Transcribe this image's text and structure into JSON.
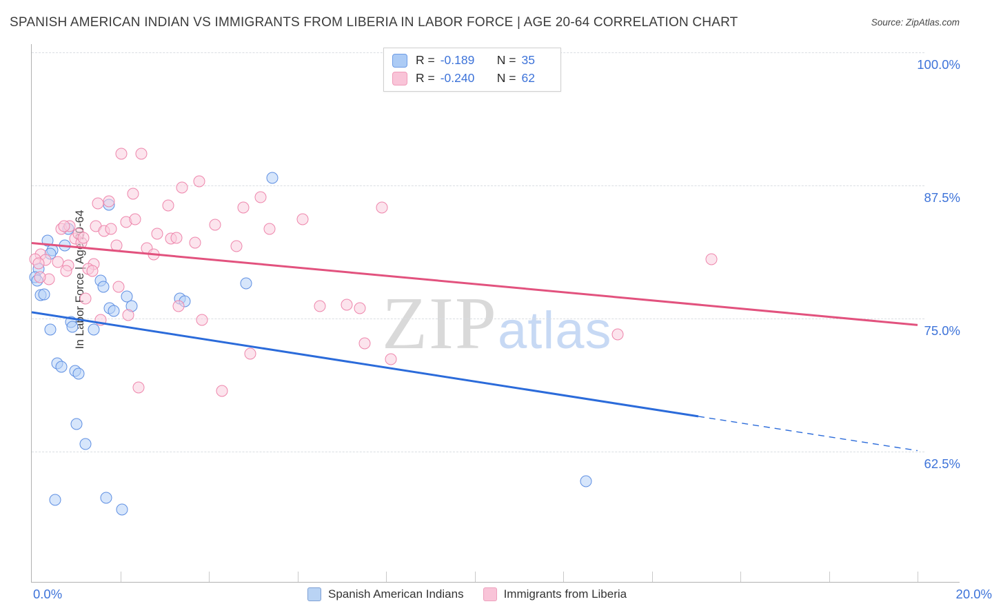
{
  "header": {
    "title": "SPANISH AMERICAN INDIAN VS IMMIGRANTS FROM LIBERIA IN LABOR FORCE | AGE 20-64 CORRELATION CHART",
    "source": "Source: ZipAtlas.com"
  },
  "stats_legend": [
    {
      "series": "blue",
      "r_label": "R =",
      "r_value": "-0.189",
      "n_label": "N =",
      "n_value": "35"
    },
    {
      "series": "pink",
      "r_label": "R =",
      "r_value": "-0.240",
      "n_label": "N =",
      "n_value": "62"
    }
  ],
  "axes": {
    "y_title": "In Labor Force | Age 20-64",
    "x_min_label": "0.0%",
    "x_max_label": "20.0%"
  },
  "watermark": {
    "zip": "ZIP",
    "atlas": "atlas"
  },
  "bottom_legend": [
    {
      "label": "Spanish American Indians",
      "series": "blue"
    },
    {
      "label": "Immigrants from Liberia",
      "series": "pink"
    }
  ],
  "colors": {
    "blue_point_stroke": "#5d8ee2",
    "blue_point_fill": "#b6d2f7",
    "pink_point_stroke": "#ee85ab",
    "pink_point_fill": "#f9cdde",
    "blue_trend": "#2b6bda",
    "pink_trend": "#e2527e",
    "axis_label_blue": "#3d73d9"
  },
  "chart_data": {
    "type": "scatter",
    "x_range": [
      0,
      20
    ],
    "y_gridlines": [
      {
        "value": 100.0,
        "label": "100.0%"
      },
      {
        "value": 87.5,
        "label": "87.5%"
      },
      {
        "value": 75.0,
        "label": "75.0%"
      },
      {
        "value": 62.5,
        "label": "62.5%"
      }
    ],
    "x_tick_step_pct": 2,
    "series": [
      {
        "name": "Spanish American Indians",
        "class": "blue",
        "points": [
          [
            1.74,
            85.7
          ],
          [
            0.83,
            83.4
          ],
          [
            0.36,
            82.3
          ],
          [
            0.75,
            81.9
          ],
          [
            0.47,
            81.4
          ],
          [
            0.42,
            81.1
          ],
          [
            0.16,
            79.7
          ],
          [
            0.08,
            78.9
          ],
          [
            1.56,
            78.6
          ],
          [
            1.62,
            78.0
          ],
          [
            0.2,
            77.2
          ],
          [
            0.28,
            77.3
          ],
          [
            2.15,
            77.1
          ],
          [
            2.26,
            76.2
          ],
          [
            1.76,
            76.0
          ],
          [
            1.85,
            75.7
          ],
          [
            0.89,
            74.7
          ],
          [
            0.92,
            74.2
          ],
          [
            0.42,
            74.0
          ],
          [
            1.4,
            74.0
          ],
          [
            3.35,
            76.9
          ],
          [
            3.46,
            76.6
          ],
          [
            0.58,
            70.8
          ],
          [
            0.67,
            70.5
          ],
          [
            0.98,
            70.1
          ],
          [
            1.06,
            69.8
          ],
          [
            1.01,
            65.1
          ],
          [
            1.21,
            63.2
          ],
          [
            4.84,
            78.3
          ],
          [
            5.43,
            88.2
          ],
          [
            0.53,
            58.0
          ],
          [
            1.68,
            58.2
          ],
          [
            2.04,
            57.1
          ],
          [
            12.51,
            59.7
          ],
          [
            0.12,
            78.6
          ]
        ],
        "trend": {
          "x1": 0,
          "y1": 75.6,
          "x2": 20,
          "y2": 62.6,
          "solid_until_x": 15.05
        }
      },
      {
        "name": "Immigrants from Liberia",
        "class": "pink",
        "points": [
          [
            2.02,
            90.5
          ],
          [
            2.47,
            90.5
          ],
          [
            2.29,
            86.7
          ],
          [
            3.39,
            87.3
          ],
          [
            3.78,
            87.9
          ],
          [
            1.49,
            85.8
          ],
          [
            1.74,
            86.0
          ],
          [
            3.08,
            85.6
          ],
          [
            2.13,
            84.1
          ],
          [
            2.33,
            84.3
          ],
          [
            4.14,
            83.8
          ],
          [
            1.45,
            83.7
          ],
          [
            1.63,
            83.2
          ],
          [
            1.79,
            83.4
          ],
          [
            0.67,
            83.4
          ],
          [
            0.86,
            83.7
          ],
          [
            2.83,
            83.0
          ],
          [
            3.14,
            82.5
          ],
          [
            0.98,
            82.5
          ],
          [
            1.12,
            82.1
          ],
          [
            1.91,
            81.9
          ],
          [
            3.27,
            82.6
          ],
          [
            3.69,
            82.1
          ],
          [
            2.6,
            81.6
          ],
          [
            2.75,
            81.0
          ],
          [
            0.2,
            81.0
          ],
          [
            0.31,
            80.5
          ],
          [
            0.59,
            80.3
          ],
          [
            0.39,
            78.7
          ],
          [
            0.82,
            80.0
          ],
          [
            1.4,
            80.1
          ],
          [
            1.28,
            79.7
          ],
          [
            1.96,
            78.0
          ],
          [
            5.17,
            86.4
          ],
          [
            4.78,
            85.4
          ],
          [
            5.37,
            83.4
          ],
          [
            6.12,
            84.3
          ],
          [
            7.91,
            85.4
          ],
          [
            4.62,
            81.8
          ],
          [
            1.21,
            76.9
          ],
          [
            2.18,
            75.3
          ],
          [
            1.56,
            74.9
          ],
          [
            3.84,
            74.9
          ],
          [
            3.32,
            76.2
          ],
          [
            2.41,
            68.5
          ],
          [
            6.51,
            76.2
          ],
          [
            7.11,
            76.3
          ],
          [
            7.41,
            76.0
          ],
          [
            7.52,
            72.7
          ],
          [
            4.93,
            71.7
          ],
          [
            8.11,
            71.2
          ],
          [
            4.3,
            68.2
          ],
          [
            15.35,
            80.6
          ],
          [
            13.23,
            73.5
          ],
          [
            0.73,
            83.7
          ],
          [
            1.06,
            83.0
          ],
          [
            1.17,
            82.6
          ],
          [
            0.08,
            80.6
          ],
          [
            0.16,
            80.2
          ],
          [
            0.78,
            79.5
          ],
          [
            1.37,
            79.5
          ],
          [
            0.19,
            78.9
          ]
        ],
        "trend": {
          "x1": 0,
          "y1": 82.1,
          "x2": 20,
          "y2": 74.4,
          "solid_until_x": 20
        }
      }
    ]
  }
}
